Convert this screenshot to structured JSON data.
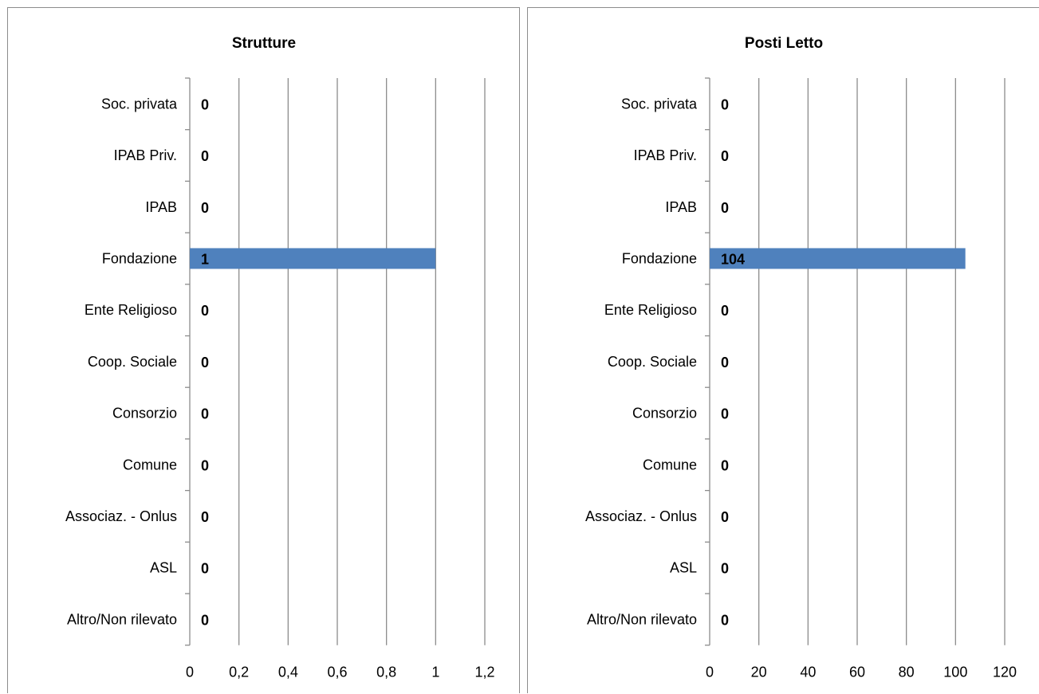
{
  "charts": [
    {
      "panel": "panel-strutture",
      "chart_data": {
        "type": "bar",
        "orientation": "horizontal",
        "title": "Strutture",
        "categories": [
          "Soc. privata",
          "IPAB Priv.",
          "IPAB",
          "Fondazione",
          "Ente Religioso",
          "Coop. Sociale",
          "Consorzio",
          "Comune",
          "Associaz. - Onlus",
          "ASL",
          "Altro/Non rilevato"
        ],
        "values": [
          0,
          0,
          0,
          1,
          0,
          0,
          0,
          0,
          0,
          0,
          0
        ],
        "xlim": [
          0,
          1.2
        ],
        "xticks": [
          "0",
          "0,2",
          "0,4",
          "0,6",
          "0,8",
          "1",
          "1,2"
        ],
        "xtick_values": [
          0,
          0.2,
          0.4,
          0.6,
          0.8,
          1,
          1.2
        ],
        "grid": "vertical",
        "legend": "none",
        "bar_color": "#4F81BD"
      }
    },
    {
      "panel": "panel-posti",
      "chart_data": {
        "type": "bar",
        "orientation": "horizontal",
        "title": "Posti Letto",
        "categories": [
          "Soc. privata",
          "IPAB Priv.",
          "IPAB",
          "Fondazione",
          "Ente Religioso",
          "Coop. Sociale",
          "Consorzio",
          "Comune",
          "Associaz. - Onlus",
          "ASL",
          "Altro/Non rilevato"
        ],
        "values": [
          0,
          0,
          0,
          104,
          0,
          0,
          0,
          0,
          0,
          0,
          0
        ],
        "xlim": [
          0,
          120
        ],
        "xticks": [
          "0",
          "20",
          "40",
          "60",
          "80",
          "100",
          "120"
        ],
        "xtick_values": [
          0,
          20,
          40,
          60,
          80,
          100,
          120
        ],
        "grid": "vertical",
        "legend": "none",
        "bar_color": "#4F81BD"
      }
    }
  ]
}
